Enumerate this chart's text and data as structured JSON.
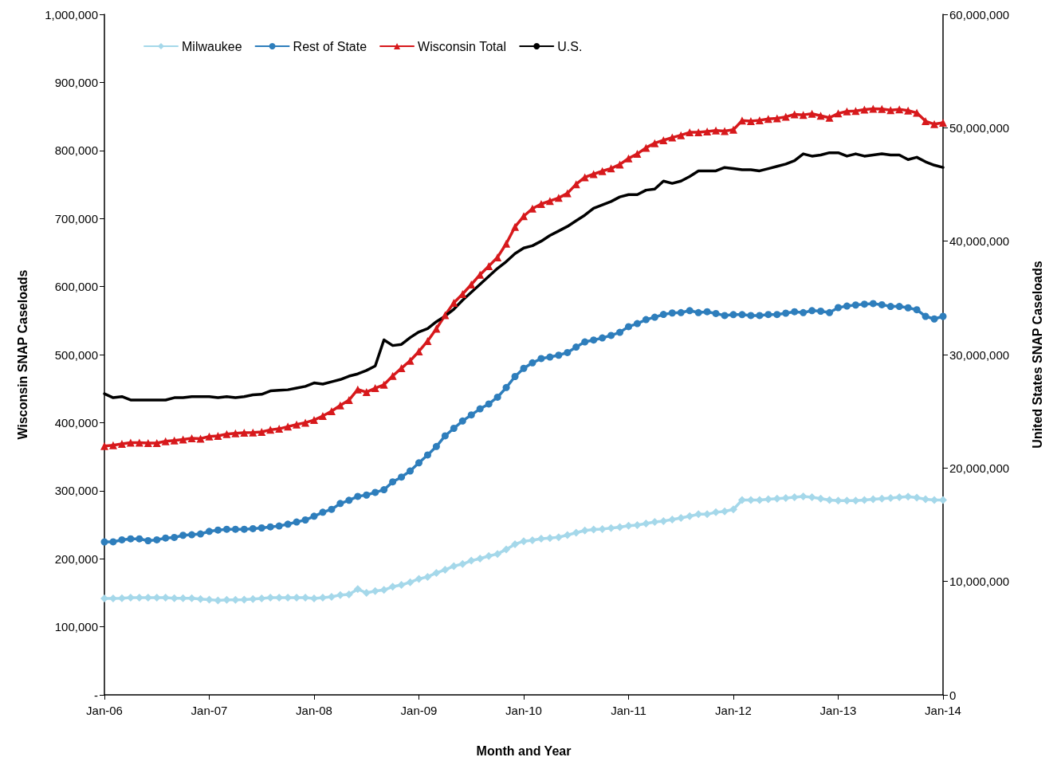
{
  "chart_data": {
    "type": "line",
    "xlabel": "Month and Year",
    "ylabel": "Wisconsin SNAP Caseloads",
    "y2label": "United States SNAP Caseloads",
    "categories": [
      "Jan-06",
      null,
      null,
      null,
      null,
      null,
      null,
      null,
      null,
      null,
      null,
      null,
      "Jan-07",
      null,
      null,
      null,
      null,
      null,
      null,
      null,
      null,
      null,
      null,
      null,
      "Jan-08",
      null,
      null,
      null,
      null,
      null,
      null,
      null,
      null,
      null,
      null,
      null,
      "Jan-09",
      null,
      null,
      null,
      null,
      null,
      null,
      null,
      null,
      null,
      null,
      null,
      "Jan-10",
      null,
      null,
      null,
      null,
      null,
      null,
      null,
      null,
      null,
      null,
      null,
      "Jan-11",
      null,
      null,
      null,
      null,
      null,
      null,
      null,
      null,
      null,
      null,
      null,
      "Jan-12",
      null,
      null,
      null,
      null,
      null,
      null,
      null,
      null,
      null,
      null,
      null,
      "Jan-13",
      null,
      null,
      null,
      null,
      null,
      null,
      null,
      null,
      null,
      null,
      null,
      "Jan-14"
    ],
    "ylim": [
      0,
      1000000
    ],
    "yticks": [
      {
        "value": 0,
        "label": "-"
      },
      {
        "value": 100000,
        "label": "100,000"
      },
      {
        "value": 200000,
        "label": "200,000"
      },
      {
        "value": 300000,
        "label": "300,000"
      },
      {
        "value": 400000,
        "label": "400,000"
      },
      {
        "value": 500000,
        "label": "500,000"
      },
      {
        "value": 600000,
        "label": "600,000"
      },
      {
        "value": 700000,
        "label": "700,000"
      },
      {
        "value": 800000,
        "label": "800,000"
      },
      {
        "value": 900000,
        "label": "900,000"
      },
      {
        "value": 1000000,
        "label": "1,000,000"
      }
    ],
    "y2lim": [
      0,
      60000000
    ],
    "y2ticks": [
      0,
      {
        "value": 10000000,
        "label": "10,000,000"
      },
      {
        "value": 20000000,
        "label": "20,000,000"
      },
      {
        "value": 30000000,
        "label": "30,000,000"
      },
      {
        "value": 40000000,
        "label": "40,000,000"
      },
      {
        "value": 50000000,
        "label": "50,000,000"
      },
      {
        "value": 60000000,
        "label": "60,000,000"
      }
    ],
    "grid": false,
    "legend": "top left",
    "line_style": "solid",
    "series": [
      {
        "name": "Milwaukee",
        "color": "#a5d8ea",
        "marker": "diamond",
        "values": [
          141700,
          141700,
          142100,
          142900,
          142900,
          142900,
          142900,
          142900,
          142100,
          142100,
          142100,
          140800,
          140000,
          138900,
          139600,
          139600,
          140000,
          140800,
          141700,
          142900,
          142900,
          142900,
          142900,
          142900,
          141700,
          142900,
          144100,
          146800,
          147600,
          155400,
          149900,
          152600,
          154200,
          158900,
          161500,
          165500,
          170400,
          173400,
          179300,
          183800,
          189200,
          192300,
          197200,
          200300,
          204000,
          207100,
          213800,
          221400,
          225800,
          227200,
          229400,
          230400,
          231700,
          234800,
          238300,
          241500,
          242900,
          243700,
          245100,
          246400,
          248600,
          249500,
          251800,
          254000,
          255400,
          257600,
          260000,
          262500,
          265400,
          265400,
          268300,
          269600,
          272600,
          286300,
          286300,
          286300,
          287500,
          288400,
          289300,
          290400,
          291700,
          290400,
          288400,
          286300,
          285500,
          285500,
          285500,
          286300,
          287500,
          288400,
          289300,
          290400,
          291200,
          289700,
          287500,
          286300,
          286300
        ]
      },
      {
        "name": "Rest of State",
        "color": "#2e7ebc",
        "marker": "circle",
        "values": [
          224700,
          224900,
          227800,
          229300,
          229300,
          226600,
          227800,
          230500,
          231300,
          234500,
          235300,
          236400,
          240300,
          242200,
          243400,
          243400,
          243400,
          244200,
          245300,
          246900,
          248100,
          250800,
          254000,
          257000,
          262500,
          268300,
          272600,
          281200,
          285900,
          291700,
          293600,
          297500,
          301400,
          313000,
          320000,
          329000,
          341000,
          352500,
          365000,
          380600,
          391700,
          402400,
          411400,
          420300,
          427500,
          437400,
          451600,
          467800,
          479800,
          487900,
          494200,
          496400,
          499100,
          503000,
          511000,
          518700,
          521400,
          524500,
          528200,
          532700,
          541100,
          545600,
          551400,
          555000,
          559000,
          561200,
          561700,
          564600,
          561700,
          563000,
          560400,
          557500,
          558800,
          558800,
          557500,
          557500,
          558900,
          558900,
          560900,
          563000,
          561700,
          564600,
          563800,
          561700,
          569100,
          571300,
          572900,
          574200,
          575000,
          573300,
          570800,
          570800,
          568800,
          565900,
          556200,
          552400,
          556200
        ]
      },
      {
        "name": "Wisconsin Total",
        "color": "#d7191c",
        "marker": "triangle",
        "values": [
          365600,
          366800,
          368800,
          370700,
          370700,
          370000,
          370000,
          372700,
          373800,
          375400,
          377000,
          376600,
          379700,
          380500,
          383200,
          384400,
          385200,
          385600,
          386400,
          389500,
          391000,
          394200,
          397300,
          400000,
          403900,
          409800,
          416800,
          425400,
          433200,
          448800,
          444900,
          450700,
          455700,
          468700,
          480000,
          491000,
          504700,
          520000,
          538000,
          558000,
          576000,
          589000,
          603000,
          617500,
          630000,
          643000,
          663000,
          687700,
          703400,
          714600,
          721300,
          725800,
          730300,
          737000,
          750400,
          760600,
          765200,
          769600,
          773600,
          779400,
          788400,
          795000,
          804000,
          810700,
          815000,
          819000,
          822400,
          826600,
          826600,
          827800,
          829400,
          828500,
          830400,
          844000,
          843200,
          844400,
          846400,
          847300,
          849400,
          853000,
          852300,
          854000,
          851000,
          848000,
          854400,
          857400,
          858000,
          860000,
          861300,
          861000,
          859300,
          860500,
          858600,
          855300,
          843000,
          838600,
          840800
        ]
      },
      {
        "name": "U.S.",
        "color": "#000000",
        "marker": "none",
        "axis": "y2",
        "values": [
          26550000,
          26200000,
          26300000,
          26000000,
          26000000,
          26000000,
          26000000,
          26000000,
          26200000,
          26200000,
          26300000,
          26300000,
          26300000,
          26200000,
          26300000,
          26200000,
          26300000,
          26450000,
          26500000,
          26800000,
          26850000,
          26900000,
          27050000,
          27200000,
          27500000,
          27400000,
          27600000,
          27800000,
          28100000,
          28300000,
          28600000,
          29000000,
          31300000,
          30800000,
          30900000,
          31500000,
          32000000,
          32300000,
          32900000,
          33400000,
          34000000,
          34800000,
          35500000,
          36200000,
          36900000,
          37600000,
          38200000,
          38900000,
          39400000,
          39600000,
          40000000,
          40500000,
          40900000,
          41300000,
          41800000,
          42300000,
          42900000,
          43200000,
          43500000,
          43900000,
          44100000,
          44100000,
          44500000,
          44600000,
          45300000,
          45100000,
          45300000,
          45700000,
          46200000,
          46200000,
          46200000,
          46500000,
          46400000,
          46300000,
          46300000,
          46200000,
          46400000,
          46600000,
          46800000,
          47100000,
          47700000,
          47500000,
          47600000,
          47800000,
          47800000,
          47500000,
          47700000,
          47500000,
          47600000,
          47700000,
          47600000,
          47600000,
          47200000,
          47400000,
          47000000,
          46700000,
          46500000
        ]
      }
    ]
  }
}
